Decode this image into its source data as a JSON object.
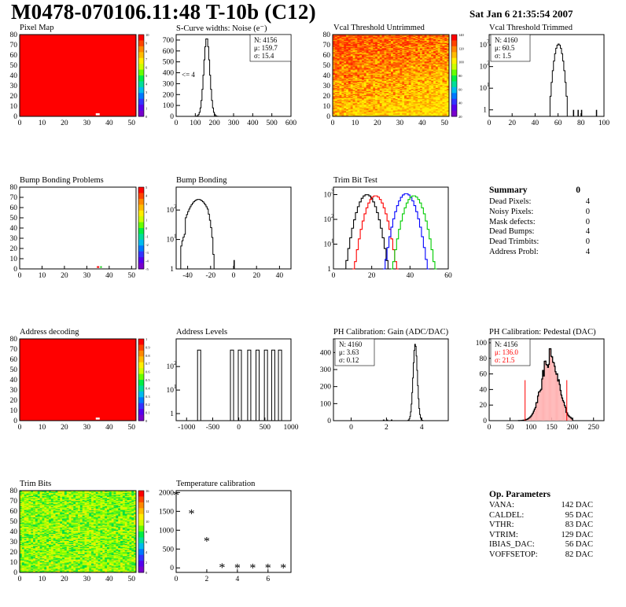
{
  "header": {
    "title": "M0478-070106.11:48 T-10b (C12)",
    "date": "Sat Jan  6 21:35:54 2007"
  },
  "colors": {
    "red": "#ff0000",
    "green": "#00cc00",
    "blue": "#0000ff",
    "black": "#000000"
  },
  "panels": {
    "pixel_map": {
      "title": "Pixel Map"
    },
    "scurve": {
      "title": "S-Curve widths: Noise (e⁻)",
      "stats": [
        "N: 4156",
        "μ: 159.7",
        "σ: 15.4"
      ],
      "note": "<= 4"
    },
    "vcal_untrimmed": {
      "title": "Vcal Threshold Untrimmed"
    },
    "vcal_trimmed": {
      "title": "Vcal Threshold Trimmed",
      "stats": [
        "N: 4160",
        "μ: 60.5",
        "σ:  1.5"
      ]
    },
    "bump_problems": {
      "title": "Bump Bonding Problems"
    },
    "bump_bonding": {
      "title": "Bump Bonding"
    },
    "trim_bit_test": {
      "title": "Trim Bit Test"
    },
    "address_decoding": {
      "title": "Address decoding"
    },
    "address_levels": {
      "title": "Address Levels"
    },
    "ph_gain": {
      "title": "PH Calibration: Gain (ADC/DAC)",
      "stats": [
        "N: 4160",
        "μ: 3.63",
        "σ: 0.12"
      ]
    },
    "ph_pedestal": {
      "title": "PH Calibration: Pedestal (DAC)",
      "stats": [
        "N: 4156",
        "μ: 136.0",
        "σ: 21.5"
      ]
    },
    "trim_bits": {
      "title": "Trim Bits"
    },
    "temperature": {
      "title": "Temperature calibration"
    }
  },
  "summary": {
    "title": "Summary",
    "total": "0",
    "rows": [
      {
        "label": "Dead Pixels:",
        "value": "4"
      },
      {
        "label": "Noisy Pixels:",
        "value": "0"
      },
      {
        "label": "Mask defects:",
        "value": "0"
      },
      {
        "label": "Dead Bumps:",
        "value": "4"
      },
      {
        "label": "Dead Trimbits:",
        "value": "0"
      },
      {
        "label": "Address Probl:",
        "value": "4"
      }
    ]
  },
  "op_params": {
    "title": "Op. Parameters",
    "rows": [
      {
        "label": "VANA:",
        "value": "142 DAC"
      },
      {
        "label": "CALDEL:",
        "value": "95 DAC"
      },
      {
        "label": "VTHR:",
        "value": "83 DAC"
      },
      {
        "label": "VTRIM:",
        "value": "129 DAC"
      },
      {
        "label": "IBIAS_DAC:",
        "value": "56 DAC"
      },
      {
        "label": "VOFFSETOP:",
        "value": "82 DAC"
      }
    ]
  },
  "chart_data": [
    {
      "id": "pixel_map",
      "type": "heatmap",
      "title": "Pixel Map",
      "xlim": [
        0,
        52
      ],
      "ylim": [
        0,
        80
      ],
      "xticks": [
        0,
        10,
        20,
        30,
        40,
        50
      ],
      "yticks": [
        0,
        10,
        20,
        30,
        40,
        50,
        60,
        70,
        80
      ],
      "fill": "red",
      "zrange": [
        0,
        10
      ],
      "palette_ticks": [
        "10",
        "9",
        "8",
        "7",
        "6",
        "5",
        "4",
        "3",
        "2",
        "1",
        "0"
      ]
    },
    {
      "id": "scurve",
      "type": "line",
      "title": "S-Curve widths: Noise (e⁻)",
      "xlim": [
        0,
        600
      ],
      "ylim": [
        0,
        750
      ],
      "xticks": [
        0,
        100,
        200,
        300,
        400,
        500,
        600
      ],
      "yticks": [
        0,
        100,
        200,
        300,
        400,
        500,
        600,
        700
      ],
      "peak_x": 160,
      "peak_y": 720,
      "sigma": 15.4
    },
    {
      "id": "vcal_untrimmed",
      "type": "heatmap",
      "title": "Vcal Threshold Untrimmed",
      "xlim": [
        0,
        52
      ],
      "ylim": [
        0,
        80
      ],
      "xticks": [
        0,
        10,
        20,
        30,
        40,
        50
      ],
      "yticks": [
        0,
        10,
        20,
        30,
        40,
        50,
        60,
        70,
        80
      ],
      "palette_ticks": [
        "140",
        "120",
        "100",
        "80",
        "60",
        "40",
        "20"
      ]
    },
    {
      "id": "vcal_trimmed",
      "type": "line",
      "title": "Vcal Threshold Trimmed",
      "log": true,
      "xlim": [
        0,
        100
      ],
      "ylim": [
        0.5,
        3000
      ],
      "xticks": [
        0,
        20,
        40,
        60,
        80,
        100
      ],
      "yticks": [
        1,
        10,
        100,
        1000
      ],
      "peak_x": 60.5,
      "peak_y": 1100,
      "sigma": 1.5
    },
    {
      "id": "bump_problems",
      "type": "heatmap",
      "title": "Bump Bonding Problems",
      "xlim": [
        0,
        52
      ],
      "ylim": [
        0,
        80
      ],
      "xticks": [
        0,
        10,
        20,
        30,
        40,
        50
      ],
      "yticks": [
        0,
        10,
        20,
        30,
        40,
        50,
        60,
        70,
        80
      ],
      "palette_ticks": [
        "5",
        "4",
        "3",
        "2",
        "1",
        "0",
        "-1",
        "-2",
        "-3",
        "-4",
        "-5"
      ]
    },
    {
      "id": "bump_bonding",
      "type": "line",
      "title": "Bump Bonding",
      "log": true,
      "xlim": [
        -50,
        50
      ],
      "ylim": [
        1,
        600
      ],
      "xticks": [
        -40,
        -20,
        0,
        20,
        40
      ],
      "yticks": [
        1,
        10,
        100
      ]
    },
    {
      "id": "trim_bit_test",
      "type": "line",
      "title": "Trim Bit Test",
      "log": true,
      "xlim": [
        0,
        60
      ],
      "ylim": [
        1,
        2000
      ],
      "xticks": [
        0,
        20,
        40,
        60
      ],
      "yticks": [
        1,
        10,
        100,
        1000
      ],
      "series": [
        {
          "color": "black",
          "mu": 17.5,
          "peak": 1000
        },
        {
          "color": "red",
          "mu": 22,
          "peak": 900
        },
        {
          "color": "blue",
          "mu": 38,
          "peak": 1100
        },
        {
          "color": "green",
          "mu": 42,
          "peak": 900
        }
      ]
    },
    {
      "id": "address_decoding",
      "type": "heatmap",
      "title": "Address decoding",
      "xlim": [
        0,
        52
      ],
      "ylim": [
        0,
        80
      ],
      "xticks": [
        0,
        10,
        20,
        30,
        40,
        50
      ],
      "yticks": [
        0,
        10,
        20,
        30,
        40,
        50,
        60,
        70,
        80
      ],
      "fill": "red",
      "zrange": [
        0,
        1
      ],
      "palette_ticks": [
        "1",
        "0.9",
        "0.8",
        "0.7",
        "0.6",
        "0.5",
        "0.4",
        "0.3",
        "0.2",
        "0.1",
        "0"
      ]
    },
    {
      "id": "address_levels",
      "type": "line",
      "title": "Address Levels",
      "log": true,
      "xlim": [
        -1200,
        1000
      ],
      "ylim": [
        0.5,
        1500
      ],
      "xticks": [
        -1000,
        -500,
        0,
        500,
        1000
      ],
      "yticks": [
        1,
        10,
        100
      ],
      "peaks_x": [
        -760,
        -130,
        20,
        200,
        360,
        520,
        660,
        790
      ]
    },
    {
      "id": "ph_gain",
      "type": "line",
      "title": "PH Calibration: Gain (ADC/DAC)",
      "xlim": [
        -1,
        5.5
      ],
      "ylim": [
        0,
        480
      ],
      "xticks": [
        0,
        2,
        4
      ],
      "yticks": [
        0,
        100,
        200,
        300,
        400
      ],
      "peak_x": 3.63,
      "peak_y": 450,
      "sigma": 0.12
    },
    {
      "id": "ph_pedestal",
      "type": "line",
      "title": "PH Calibration: Pedestal (DAC)",
      "xlim": [
        0,
        275
      ],
      "ylim": [
        0,
        105
      ],
      "xticks": [
        0,
        50,
        100,
        150,
        200,
        250
      ],
      "yticks": [
        0,
        20,
        40,
        60,
        80,
        100
      ],
      "peak_x": 146,
      "peak_y": 82,
      "fit_mu": 136,
      "fit_sigma": 21.5,
      "range_lines_x": [
        86,
        186
      ]
    },
    {
      "id": "trim_bits",
      "type": "heatmap",
      "title": "Trim Bits",
      "xlim": [
        0,
        52
      ],
      "ylim": [
        0,
        80
      ],
      "xticks": [
        0,
        10,
        20,
        30,
        40,
        50
      ],
      "yticks": [
        0,
        10,
        20,
        30,
        40,
        50,
        60,
        70,
        80
      ],
      "palette_ticks": [
        "16",
        "14",
        "12",
        "10",
        "8",
        "6",
        "4",
        "2",
        "0"
      ]
    },
    {
      "id": "temperature",
      "type": "scatter",
      "title": "Temperature calibration",
      "xlim": [
        0,
        7.5
      ],
      "ylim": [
        -120,
        2050
      ],
      "xticks": [
        0,
        2,
        4,
        6
      ],
      "yticks": [
        0,
        500,
        1000,
        1500,
        2000
      ],
      "x": [
        0,
        1,
        2,
        3,
        4,
        5,
        6,
        7
      ],
      "y": [
        1930,
        1430,
        700,
        0,
        -5,
        -5,
        -5,
        -5
      ]
    }
  ]
}
